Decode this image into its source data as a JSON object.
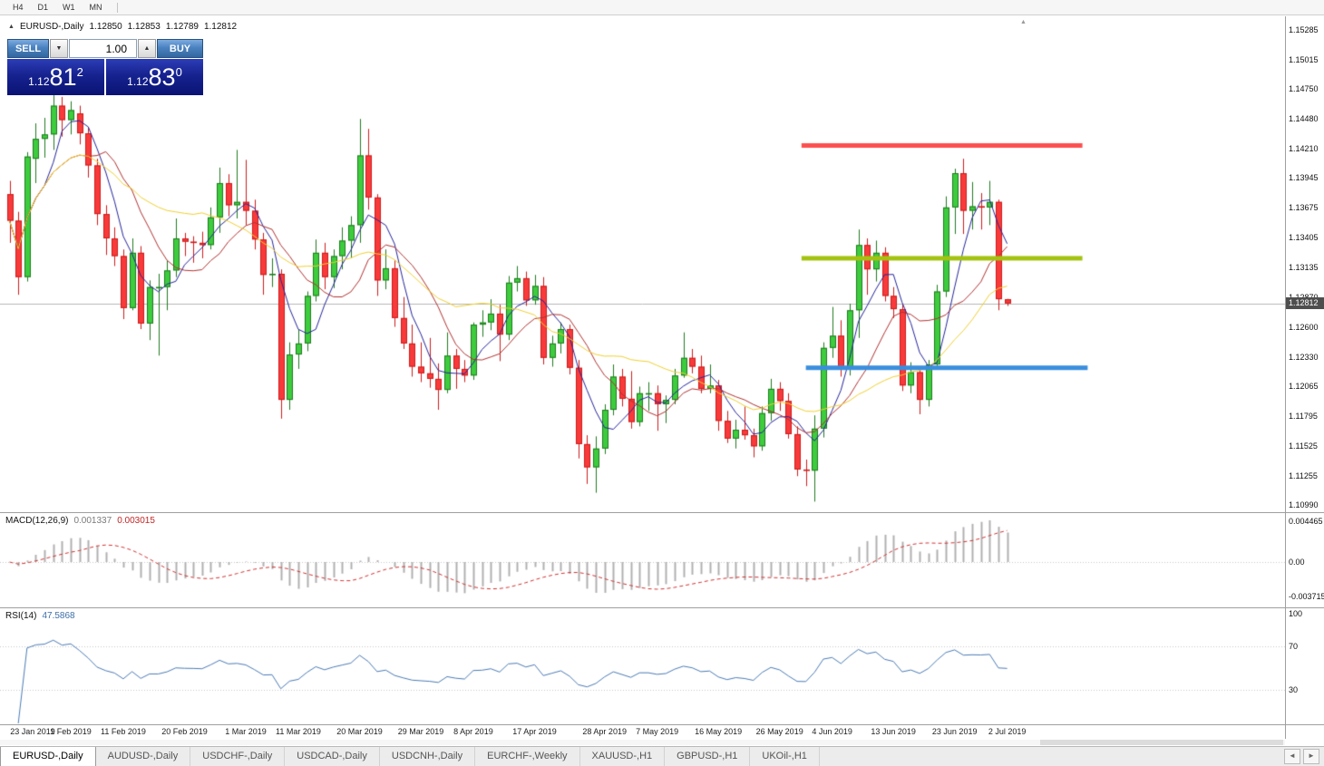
{
  "toolbar": {
    "timeframes": [
      "H4",
      "D1",
      "W1",
      "MN"
    ]
  },
  "chart_header": {
    "marker": "▲",
    "symbol": "EURUSD-,Daily",
    "open": "1.12850",
    "high": "1.12853",
    "low": "1.12789",
    "close": "1.12812"
  },
  "trade_widget": {
    "sell_label": "SELL",
    "buy_label": "BUY",
    "volume": "1.00",
    "dec_glyph": "▼",
    "inc_glyph": "▲",
    "sell_price": {
      "small": "1.12",
      "big": "81",
      "sup": "2"
    },
    "buy_price": {
      "small": "1.12",
      "big": "83",
      "sup": "0"
    }
  },
  "price_axis": {
    "labels": [
      "1.15285",
      "1.15015",
      "1.14750",
      "1.14480",
      "1.14210",
      "1.13945",
      "1.13675",
      "1.13405",
      "1.13135",
      "1.12870",
      "1.12600",
      "1.12330",
      "1.12065",
      "1.11795",
      "1.11525",
      "1.11255",
      "1.10990"
    ],
    "bid_tag": "1.12812"
  },
  "indicators": {
    "macd": {
      "name": "MACD(12,26,9)",
      "value_main": "0.001337",
      "value_signal": "0.003015",
      "axis": [
        "0.004465",
        "0.00",
        "-0.003715"
      ]
    },
    "rsi": {
      "name": "RSI(14)",
      "value": "47.5868",
      "axis": [
        "100",
        "70",
        "30"
      ]
    }
  },
  "x_axis_ticks": [
    {
      "i": 0,
      "label": "23 Jan 2019"
    },
    {
      "i": 7,
      "label": "1 Feb 2019"
    },
    {
      "i": 13,
      "label": "11 Feb 2019"
    },
    {
      "i": 20,
      "label": "20 Feb 2019"
    },
    {
      "i": 27,
      "label": "1 Mar 2019"
    },
    {
      "i": 33,
      "label": "11 Mar 2019"
    },
    {
      "i": 40,
      "label": "20 Mar 2019"
    },
    {
      "i": 47,
      "label": "29 Mar 2019"
    },
    {
      "i": 53,
      "label": "8 Apr 2019"
    },
    {
      "i": 60,
      "label": "17 Apr 2019"
    },
    {
      "i": 68,
      "label": "28 Apr 2019"
    },
    {
      "i": 74,
      "label": "7 May 2019"
    },
    {
      "i": 81,
      "label": "16 May 2019"
    },
    {
      "i": 88,
      "label": "26 May 2019"
    },
    {
      "i": 94,
      "label": "4 Jun 2019"
    },
    {
      "i": 101,
      "label": "13 Jun 2019"
    },
    {
      "i": 108,
      "label": "23 Jun 2019"
    },
    {
      "i": 114,
      "label": "2 Jul 2019"
    }
  ],
  "bottom_tabs": {
    "items": [
      "EURUSD-,Daily",
      "AUDUSD-,Daily",
      "USDCHF-,Daily",
      "USDCAD-,Daily",
      "USDCNH-,Daily",
      "EURCHF-,Weekly",
      "XAUUSD-,H1",
      "GBPUSD-,H1",
      "UKOil-,H1"
    ],
    "active_index": 0,
    "left_arrow": "◄",
    "right_arrow": "►"
  },
  "chart_data": {
    "type": "candlestick",
    "symbol": "EURUSD-",
    "timeframe": "Daily",
    "y_axis_range": {
      "top": 1.15285,
      "bottom": 1.1099
    },
    "bid_price": 1.12812,
    "colors": {
      "up_fill": "#3dcc3d",
      "up_border": "#1f7a1f",
      "down_fill": "#f93a3a",
      "down_border": "#cc1b1b",
      "bid_line": "#b6b6b6"
    },
    "moving_averages": [
      {
        "period": 5,
        "type": "sma",
        "color": "#23239b"
      },
      {
        "period": 10,
        "type": "sma",
        "color": "#b03030"
      },
      {
        "period": 21,
        "type": "sma",
        "color": "#efcf2f"
      }
    ],
    "levels": [
      {
        "price": 1.1424,
        "i1": 90.5,
        "i2": 122.6,
        "color": "#fc4f4f",
        "thickness": 5
      },
      {
        "price": 1.1322,
        "i1": 90.5,
        "i2": 122.6,
        "color": "#a3c211",
        "thickness": 5
      },
      {
        "price": 1.1223,
        "i1": 91.0,
        "i2": 123.2,
        "color": "#3b8ede",
        "thickness": 5
      }
    ],
    "macd_params": {
      "fast": 12,
      "slow": 26,
      "signal": 9,
      "histogram_color": "#b0b0b0",
      "signal_color": "#d03030"
    },
    "rsi_params": {
      "period": 14,
      "color": "#4a7ab5",
      "levels": [
        70,
        30
      ]
    },
    "candles": [
      [
        1.138,
        1.1392,
        1.1336,
        1.1356
      ],
      [
        1.1356,
        1.1364,
        1.1289,
        1.1305
      ],
      [
        1.1305,
        1.1418,
        1.1301,
        1.1414
      ],
      [
        1.1412,
        1.1444,
        1.139,
        1.143
      ],
      [
        1.143,
        1.1449,
        1.1413,
        1.1434
      ],
      [
        1.1434,
        1.147,
        1.142,
        1.146
      ],
      [
        1.146,
        1.1468,
        1.1432,
        1.1447
      ],
      [
        1.1447,
        1.1464,
        1.1434,
        1.1456
      ],
      [
        1.1453,
        1.146,
        1.1425,
        1.1435
      ],
      [
        1.1435,
        1.144,
        1.1395,
        1.1406
      ],
      [
        1.1406,
        1.1412,
        1.1352,
        1.1362
      ],
      [
        1.1362,
        1.137,
        1.1325,
        1.134
      ],
      [
        1.134,
        1.135,
        1.1315,
        1.1324
      ],
      [
        1.1324,
        1.133,
        1.1267,
        1.1277
      ],
      [
        1.1277,
        1.134,
        1.1275,
        1.1327
      ],
      [
        1.1327,
        1.1333,
        1.1258,
        1.1263
      ],
      [
        1.1263,
        1.1302,
        1.1248,
        1.1296
      ],
      [
        1.1296,
        1.1308,
        1.1234,
        1.1296
      ],
      [
        1.1296,
        1.132,
        1.1275,
        1.1311
      ],
      [
        1.1311,
        1.1358,
        1.1305,
        1.134
      ],
      [
        1.134,
        1.1345,
        1.1324,
        1.1337
      ],
      [
        1.1337,
        1.1342,
        1.1318,
        1.1336
      ],
      [
        1.1336,
        1.1346,
        1.1322,
        1.1334
      ],
      [
        1.1334,
        1.1368,
        1.133,
        1.1359
      ],
      [
        1.1359,
        1.1404,
        1.1345,
        1.139
      ],
      [
        1.139,
        1.1398,
        1.136,
        1.137
      ],
      [
        1.137,
        1.142,
        1.1358,
        1.1373
      ],
      [
        1.1373,
        1.1411,
        1.1352,
        1.1365
      ],
      [
        1.1365,
        1.1375,
        1.133,
        1.1339
      ],
      [
        1.1339,
        1.1345,
        1.1289,
        1.1307
      ],
      [
        1.1307,
        1.1322,
        1.1296,
        1.1308
      ],
      [
        1.1308,
        1.1312,
        1.1177,
        1.1194
      ],
      [
        1.1194,
        1.1246,
        1.1185,
        1.1235
      ],
      [
        1.1235,
        1.1258,
        1.1222,
        1.1245
      ],
      [
        1.1245,
        1.1292,
        1.1238,
        1.1288
      ],
      [
        1.1288,
        1.1339,
        1.1283,
        1.1327
      ],
      [
        1.1327,
        1.1336,
        1.1294,
        1.1305
      ],
      [
        1.1305,
        1.133,
        1.1295,
        1.1324
      ],
      [
        1.1324,
        1.135,
        1.1312,
        1.1338
      ],
      [
        1.1338,
        1.136,
        1.1322,
        1.1352
      ],
      [
        1.1352,
        1.1448,
        1.1336,
        1.1415
      ],
      [
        1.1415,
        1.1439,
        1.1366,
        1.1377
      ],
      [
        1.1377,
        1.138,
        1.1288,
        1.1302
      ],
      [
        1.1302,
        1.133,
        1.1294,
        1.1313
      ],
      [
        1.1313,
        1.132,
        1.126,
        1.1268
      ],
      [
        1.1268,
        1.1287,
        1.124,
        1.1245
      ],
      [
        1.1245,
        1.1262,
        1.1215,
        1.1224
      ],
      [
        1.1224,
        1.1246,
        1.121,
        1.1218
      ],
      [
        1.1218,
        1.125,
        1.1205,
        1.1213
      ],
      [
        1.1213,
        1.1227,
        1.1185,
        1.1203
      ],
      [
        1.1203,
        1.1255,
        1.12,
        1.1234
      ],
      [
        1.1234,
        1.124,
        1.1204,
        1.1222
      ],
      [
        1.1222,
        1.123,
        1.121,
        1.1216
      ],
      [
        1.1216,
        1.1264,
        1.1212,
        1.1262
      ],
      [
        1.1262,
        1.1275,
        1.1251,
        1.1264
      ],
      [
        1.1264,
        1.1285,
        1.1257,
        1.1272
      ],
      [
        1.1272,
        1.128,
        1.1229,
        1.1253
      ],
      [
        1.1253,
        1.1306,
        1.1248,
        1.13
      ],
      [
        1.13,
        1.1315,
        1.1292,
        1.1304
      ],
      [
        1.1304,
        1.131,
        1.1279,
        1.1284
      ],
      [
        1.1284,
        1.1307,
        1.128,
        1.1297
      ],
      [
        1.1297,
        1.1305,
        1.1226,
        1.1232
      ],
      [
        1.1232,
        1.1252,
        1.1224,
        1.1245
      ],
      [
        1.1245,
        1.1264,
        1.1236,
        1.1258
      ],
      [
        1.1258,
        1.1262,
        1.1217,
        1.1223
      ],
      [
        1.1223,
        1.123,
        1.1141,
        1.1154
      ],
      [
        1.1154,
        1.1162,
        1.1118,
        1.1133
      ],
      [
        1.1133,
        1.1161,
        1.111,
        1.115
      ],
      [
        1.115,
        1.119,
        1.1145,
        1.1185
      ],
      [
        1.1185,
        1.1226,
        1.118,
        1.1215
      ],
      [
        1.1215,
        1.1222,
        1.1188,
        1.1195
      ],
      [
        1.1195,
        1.122,
        1.1168,
        1.1174
      ],
      [
        1.1174,
        1.1206,
        1.117,
        1.12
      ],
      [
        1.12,
        1.121,
        1.1184,
        1.12
      ],
      [
        1.12,
        1.1207,
        1.1166,
        1.119
      ],
      [
        1.119,
        1.1198,
        1.1173,
        1.1194
      ],
      [
        1.1194,
        1.1222,
        1.119,
        1.1216
      ],
      [
        1.1216,
        1.1255,
        1.1214,
        1.1232
      ],
      [
        1.1232,
        1.124,
        1.1218,
        1.1224
      ],
      [
        1.1224,
        1.1234,
        1.12,
        1.1204
      ],
      [
        1.1204,
        1.1226,
        1.12,
        1.1207
      ],
      [
        1.1207,
        1.1212,
        1.1166,
        1.1175
      ],
      [
        1.1175,
        1.1184,
        1.1155,
        1.1159
      ],
      [
        1.1159,
        1.1176,
        1.115,
        1.1167
      ],
      [
        1.1167,
        1.1188,
        1.1158,
        1.1162
      ],
      [
        1.1162,
        1.1168,
        1.1142,
        1.1152
      ],
      [
        1.1152,
        1.1188,
        1.1148,
        1.1182
      ],
      [
        1.1182,
        1.1213,
        1.1175,
        1.1204
      ],
      [
        1.1204,
        1.121,
        1.1184,
        1.1193
      ],
      [
        1.1193,
        1.12,
        1.1159,
        1.1163
      ],
      [
        1.1163,
        1.117,
        1.1125,
        1.1131
      ],
      [
        1.1131,
        1.114,
        1.1116,
        1.113
      ],
      [
        1.113,
        1.118,
        1.1102,
        1.1168
      ],
      [
        1.1168,
        1.1246,
        1.116,
        1.1241
      ],
      [
        1.1241,
        1.1278,
        1.1232,
        1.1252
      ],
      [
        1.1252,
        1.1266,
        1.1215,
        1.1222
      ],
      [
        1.1222,
        1.1281,
        1.1216,
        1.1275
      ],
      [
        1.1275,
        1.1348,
        1.125,
        1.1334
      ],
      [
        1.1334,
        1.134,
        1.1289,
        1.1312
      ],
      [
        1.1312,
        1.1338,
        1.1301,
        1.1327
      ],
      [
        1.1327,
        1.1332,
        1.1283,
        1.1288
      ],
      [
        1.1288,
        1.1296,
        1.1268,
        1.1276
      ],
      [
        1.1276,
        1.128,
        1.1202,
        1.1207
      ],
      [
        1.1207,
        1.1228,
        1.12,
        1.1219
      ],
      [
        1.1219,
        1.1222,
        1.1181,
        1.1194
      ],
      [
        1.1194,
        1.123,
        1.1188,
        1.1226
      ],
      [
        1.1226,
        1.1298,
        1.1222,
        1.1292
      ],
      [
        1.1292,
        1.1378,
        1.1287,
        1.1368
      ],
      [
        1.1368,
        1.1403,
        1.1344,
        1.1399
      ],
      [
        1.1399,
        1.1412,
        1.1344,
        1.1365
      ],
      [
        1.1365,
        1.1391,
        1.1348,
        1.1369
      ],
      [
        1.1369,
        1.1381,
        1.1348,
        1.1368
      ],
      [
        1.1368,
        1.1392,
        1.1352,
        1.1373
      ],
      [
        1.1373,
        1.1375,
        1.1275,
        1.1285
      ],
      [
        1.1285,
        1.12853,
        1.12789,
        1.12812
      ]
    ]
  }
}
